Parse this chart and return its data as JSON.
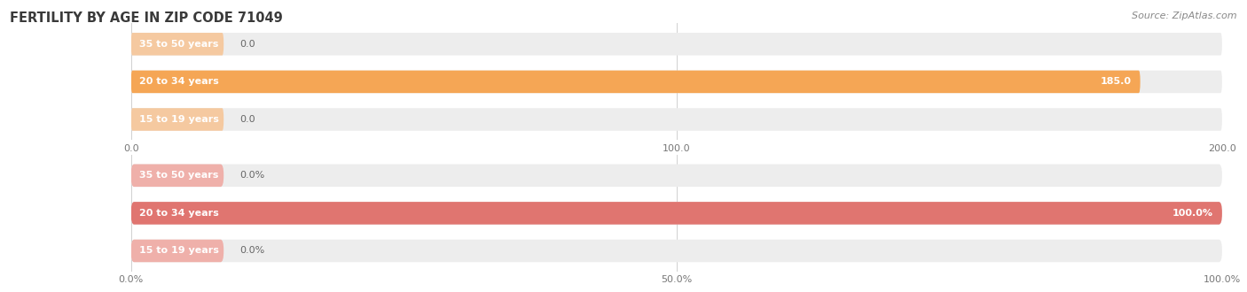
{
  "title": "FERTILITY BY AGE IN ZIP CODE 71049",
  "source": "Source: ZipAtlas.com",
  "top_chart": {
    "categories": [
      "15 to 19 years",
      "20 to 34 years",
      "35 to 50 years"
    ],
    "values": [
      0.0,
      185.0,
      0.0
    ],
    "bar_color": "#F5A655",
    "bg_color": "#EDEDED",
    "stub_color": "#F5C9A0",
    "xlim": [
      0,
      200
    ],
    "xticks": [
      0.0,
      100.0,
      200.0
    ],
    "xtick_labels": [
      "0.0",
      "100.0",
      "200.0"
    ],
    "value_labels": [
      "0.0",
      "185.0",
      "0.0"
    ]
  },
  "bottom_chart": {
    "categories": [
      "15 to 19 years",
      "20 to 34 years",
      "35 to 50 years"
    ],
    "values": [
      0.0,
      100.0,
      0.0
    ],
    "bar_color": "#E07570",
    "bg_color": "#EDEDED",
    "stub_color": "#EFB0AA",
    "xlim": [
      0,
      100
    ],
    "xticks": [
      0.0,
      50.0,
      100.0
    ],
    "xtick_labels": [
      "0.0%",
      "50.0%",
      "100.0%"
    ],
    "value_labels": [
      "0.0%",
      "100.0%",
      "0.0%"
    ]
  },
  "title_color": "#3a3a3a",
  "title_fontsize": 10.5,
  "source_fontsize": 8,
  "label_fontsize": 8,
  "value_fontsize": 8,
  "background_color": "#ffffff"
}
